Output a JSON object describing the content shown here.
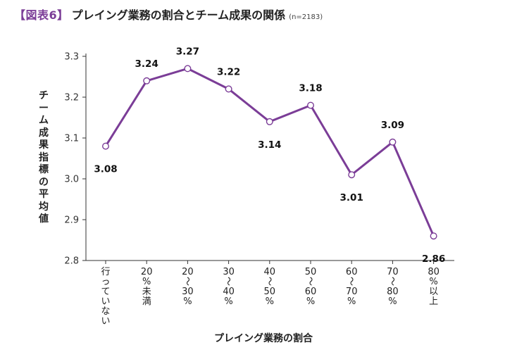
{
  "header": {
    "tag": "【図表6】",
    "title": "プレイング業務の割合とチーム成果の関係",
    "note": "(n=2183)"
  },
  "colors": {
    "accent": "#7B3D97",
    "line": "#7B3D97",
    "axis": "#333333",
    "marker_fill": "#ffffff"
  },
  "chart_data": {
    "type": "line",
    "title": "プレイング業務の割合とチーム成果の関係",
    "xlabel": "プレイング業務の割合",
    "ylabel": "チーム成果指標の平均値",
    "categories": [
      "行っていない",
      "20%未満",
      "20〜30%",
      "30〜40%",
      "40〜50%",
      "50〜60%",
      "60〜70%",
      "70〜80%",
      "80%以上"
    ],
    "category_lines": [
      [
        "行",
        "っ",
        "て",
        "い",
        "な",
        "い"
      ],
      [
        "20",
        "%",
        "未",
        "満"
      ],
      [
        "20",
        "〜",
        "30",
        "%"
      ],
      [
        "30",
        "〜",
        "40",
        "%"
      ],
      [
        "40",
        "〜",
        "50",
        "%"
      ],
      [
        "50",
        "〜",
        "60",
        "%"
      ],
      [
        "60",
        "〜",
        "70",
        "%"
      ],
      [
        "70",
        "〜",
        "80",
        "%"
      ],
      [
        "80",
        "%",
        "以",
        "上"
      ]
    ],
    "values": [
      3.08,
      3.24,
      3.27,
      3.22,
      3.14,
      3.18,
      3.01,
      3.09,
      2.86
    ],
    "data_labels": [
      "3.08",
      "3.24",
      "3.27",
      "3.22",
      "3.14",
      "3.18",
      "3.01",
      "3.09",
      "2.86"
    ],
    "label_position": [
      "below",
      "above",
      "above",
      "above",
      "below",
      "above",
      "below",
      "above",
      "below"
    ],
    "yticks": [
      2.8,
      2.9,
      3.0,
      3.1,
      3.2,
      3.3
    ],
    "ytick_labels": [
      "2.8",
      "2.9",
      "3.0",
      "3.1",
      "3.2",
      "3.3"
    ],
    "ylim": [
      2.8,
      3.3
    ],
    "grid": false,
    "legend": false
  }
}
